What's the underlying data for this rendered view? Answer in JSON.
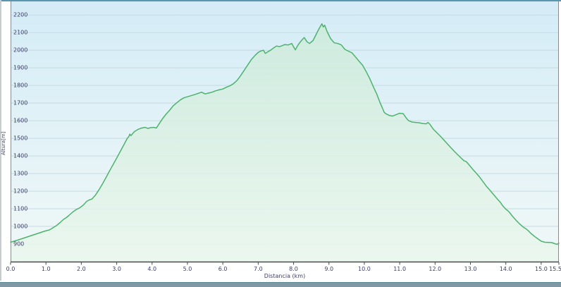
{
  "chart_data": {
    "type": "area",
    "title": "",
    "xlabel": "Distancia  (km)",
    "ylabel": "Altura[m]",
    "xlim": [
      0,
      15.5
    ],
    "ylim": [
      800,
      2285
    ],
    "grid": "horizontal-only",
    "legend": "none",
    "x_tick_values": [
      0,
      1,
      2,
      3,
      4,
      5,
      6,
      7,
      8,
      9,
      10,
      11,
      12,
      13,
      14,
      15,
      15.5
    ],
    "x_tick_labels": [
      "0.0",
      "1.0",
      "2.0",
      "3.0",
      "4.0",
      "5.0",
      "6.0",
      "7.0",
      "8.0",
      "9.0",
      "10.0",
      "11.0",
      "12.0",
      "13.0",
      "14.0",
      "15.0",
      "15.5"
    ],
    "y_tick_values": [
      900,
      1000,
      1100,
      1200,
      1300,
      1400,
      1500,
      1600,
      1700,
      1800,
      1900,
      2000,
      2100,
      2200
    ],
    "y_tick_labels": [
      "900",
      "1000",
      "1100",
      "1200",
      "1300",
      "1400",
      "1500",
      "1600",
      "1700",
      "1800",
      "1900",
      "2000",
      "2100",
      "2200"
    ],
    "series": [
      {
        "name": "elevation-profile",
        "points": [
          [
            0,
            910
          ],
          [
            0.2,
            922
          ],
          [
            0.35,
            932
          ],
          [
            0.5,
            942
          ],
          [
            0.65,
            952
          ],
          [
            0.8,
            962
          ],
          [
            0.95,
            972
          ],
          [
            1.1,
            980
          ],
          [
            1.2,
            992
          ],
          [
            1.3,
            1005
          ],
          [
            1.4,
            1022
          ],
          [
            1.5,
            1040
          ],
          [
            1.58,
            1050
          ],
          [
            1.65,
            1062
          ],
          [
            1.75,
            1080
          ],
          [
            1.85,
            1095
          ],
          [
            1.95,
            1105
          ],
          [
            2.05,
            1120
          ],
          [
            2.15,
            1142
          ],
          [
            2.22,
            1150
          ],
          [
            2.3,
            1155
          ],
          [
            2.4,
            1178
          ],
          [
            2.5,
            1208
          ],
          [
            2.6,
            1242
          ],
          [
            2.7,
            1278
          ],
          [
            2.8,
            1315
          ],
          [
            2.9,
            1352
          ],
          [
            3.0,
            1388
          ],
          [
            3.1,
            1425
          ],
          [
            3.2,
            1462
          ],
          [
            3.3,
            1500
          ],
          [
            3.34,
            1508
          ],
          [
            3.37,
            1524
          ],
          [
            3.4,
            1515
          ],
          [
            3.5,
            1538
          ],
          [
            3.6,
            1550
          ],
          [
            3.7,
            1558
          ],
          [
            3.8,
            1562
          ],
          [
            3.88,
            1556
          ],
          [
            3.95,
            1560
          ],
          [
            4.05,
            1562
          ],
          [
            4.12,
            1558
          ],
          [
            4.2,
            1582
          ],
          [
            4.3,
            1612
          ],
          [
            4.4,
            1638
          ],
          [
            4.5,
            1660
          ],
          [
            4.6,
            1685
          ],
          [
            4.7,
            1702
          ],
          [
            4.8,
            1718
          ],
          [
            4.9,
            1730
          ],
          [
            5.0,
            1736
          ],
          [
            5.1,
            1742
          ],
          [
            5.2,
            1748
          ],
          [
            5.3,
            1755
          ],
          [
            5.4,
            1762
          ],
          [
            5.5,
            1752
          ],
          [
            5.6,
            1757
          ],
          [
            5.7,
            1762
          ],
          [
            5.8,
            1770
          ],
          [
            5.9,
            1775
          ],
          [
            6.0,
            1780
          ],
          [
            6.1,
            1790
          ],
          [
            6.2,
            1798
          ],
          [
            6.3,
            1810
          ],
          [
            6.4,
            1828
          ],
          [
            6.5,
            1855
          ],
          [
            6.6,
            1885
          ],
          [
            6.7,
            1915
          ],
          [
            6.8,
            1945
          ],
          [
            6.9,
            1968
          ],
          [
            7.0,
            1988
          ],
          [
            7.08,
            1996
          ],
          [
            7.15,
            2000
          ],
          [
            7.2,
            1982
          ],
          [
            7.28,
            1992
          ],
          [
            7.35,
            2000
          ],
          [
            7.45,
            2015
          ],
          [
            7.52,
            2024
          ],
          [
            7.6,
            2020
          ],
          [
            7.68,
            2026
          ],
          [
            7.75,
            2032
          ],
          [
            7.85,
            2030
          ],
          [
            7.95,
            2038
          ],
          [
            8.0,
            2020
          ],
          [
            8.05,
            2002
          ],
          [
            8.12,
            2028
          ],
          [
            8.2,
            2050
          ],
          [
            8.3,
            2072
          ],
          [
            8.38,
            2048
          ],
          [
            8.45,
            2038
          ],
          [
            8.55,
            2055
          ],
          [
            8.65,
            2095
          ],
          [
            8.72,
            2122
          ],
          [
            8.8,
            2150
          ],
          [
            8.84,
            2132
          ],
          [
            8.88,
            2142
          ],
          [
            8.95,
            2105
          ],
          [
            9.05,
            2065
          ],
          [
            9.15,
            2042
          ],
          [
            9.25,
            2038
          ],
          [
            9.35,
            2030
          ],
          [
            9.45,
            2005
          ],
          [
            9.55,
            1995
          ],
          [
            9.65,
            1985
          ],
          [
            9.75,
            1962
          ],
          [
            9.85,
            1938
          ],
          [
            9.95,
            1915
          ],
          [
            10.05,
            1880
          ],
          [
            10.15,
            1840
          ],
          [
            10.25,
            1795
          ],
          [
            10.35,
            1752
          ],
          [
            10.45,
            1700
          ],
          [
            10.52,
            1668
          ],
          [
            10.56,
            1648
          ],
          [
            10.6,
            1640
          ],
          [
            10.7,
            1630
          ],
          [
            10.8,
            1626
          ],
          [
            10.9,
            1634
          ],
          [
            11.0,
            1642
          ],
          [
            11.1,
            1640
          ],
          [
            11.18,
            1616
          ],
          [
            11.25,
            1600
          ],
          [
            11.35,
            1592
          ],
          [
            11.45,
            1590
          ],
          [
            11.55,
            1588
          ],
          [
            11.65,
            1584
          ],
          [
            11.75,
            1582
          ],
          [
            11.8,
            1590
          ],
          [
            11.85,
            1580
          ],
          [
            11.95,
            1552
          ],
          [
            12.05,
            1532
          ],
          [
            12.15,
            1512
          ],
          [
            12.25,
            1490
          ],
          [
            12.35,
            1468
          ],
          [
            12.45,
            1446
          ],
          [
            12.55,
            1425
          ],
          [
            12.65,
            1405
          ],
          [
            12.75,
            1385
          ],
          [
            12.82,
            1372
          ],
          [
            12.88,
            1368
          ],
          [
            12.95,
            1352
          ],
          [
            13.05,
            1328
          ],
          [
            13.15,
            1305
          ],
          [
            13.25,
            1282
          ],
          [
            13.35,
            1255
          ],
          [
            13.45,
            1228
          ],
          [
            13.55,
            1205
          ],
          [
            13.65,
            1182
          ],
          [
            13.75,
            1158
          ],
          [
            13.85,
            1135
          ],
          [
            13.92,
            1115
          ],
          [
            14.0,
            1098
          ],
          [
            14.05,
            1090
          ],
          [
            14.1,
            1080
          ],
          [
            14.2,
            1055
          ],
          [
            14.3,
            1032
          ],
          [
            14.4,
            1012
          ],
          [
            14.5,
            995
          ],
          [
            14.6,
            982
          ],
          [
            14.7,
            962
          ],
          [
            14.8,
            945
          ],
          [
            14.9,
            930
          ],
          [
            15.0,
            916
          ],
          [
            15.1,
            910
          ],
          [
            15.2,
            909
          ],
          [
            15.3,
            908
          ],
          [
            15.38,
            902
          ],
          [
            15.45,
            898
          ],
          [
            15.5,
            905
          ]
        ]
      }
    ]
  },
  "colors": {
    "line": "#4cb36d",
    "fill_top": "#cdeada",
    "fill_bottom": "#eaf7ee",
    "bg_top": "#d4ecf7",
    "bg_bottom": "#f0f8f7",
    "grid": "#c5dae2",
    "axis_dark": "#4a4a4a",
    "axis_light": "#8a8a8a",
    "text": "#3c3c66",
    "top_border": "#5796ae",
    "bottom_bar": "#7f9aa6",
    "bottom_bar_edge": "#5f8896",
    "left_strip": "#c5cdd1"
  }
}
